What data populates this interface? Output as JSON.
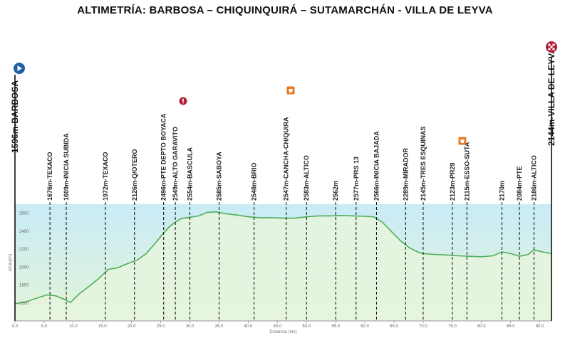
{
  "title": "ALTIMETRÍA: BARBOSA – CHIQUINQUIRÁ – SUTAMARCHÁN - VILLA DE LEYVA",
  "chart_data": {
    "type": "area",
    "xlabel": "Distancia (km)",
    "ylabel": "Altura(m)",
    "xlim": [
      0,
      92
    ],
    "ylim": [
      1400,
      2700
    ],
    "x_ticks": [
      0,
      5,
      10,
      15,
      20,
      25,
      30,
      35,
      40,
      45,
      50,
      55,
      60,
      65,
      70,
      75,
      80,
      85,
      90
    ],
    "x_tick_labels": [
      "0.0",
      "5.0",
      "10.0",
      "15.0",
      "20.0",
      "25.0",
      "30.0",
      "35.0",
      "40.0",
      "45.0",
      "50.0",
      "55.0",
      "60.0",
      "65.0",
      "70.0",
      "75.0",
      "80.0",
      "85.0",
      "90.0"
    ],
    "y_ticks": [
      1600,
      1800,
      2000,
      2200,
      2400,
      2600
    ],
    "y_tick_labels": [
      "1600",
      "1800",
      "2000",
      "2200",
      "2400",
      "2600"
    ],
    "grid": false,
    "colors": {
      "line": "#4fae5a",
      "fill_top": "#c9ebf7",
      "fill_bottom": "#e3f5d8",
      "marker_line": "#000000"
    },
    "profile": {
      "x": [
        0,
        2,
        4,
        5.5,
        7,
        8.5,
        9.5,
        11,
        13,
        14.5,
        16,
        17.5,
        19,
        21,
        22.5,
        24,
        25.5,
        26.5,
        27.5,
        28.5,
        30,
        31.5,
        33,
        34.5,
        36,
        38,
        40,
        42,
        44,
        46,
        48,
        50,
        52,
        54,
        56,
        58,
        60,
        61.5,
        63,
        64.5,
        66,
        67.5,
        69,
        70,
        72,
        74,
        76,
        78,
        80,
        82,
        83.5,
        85,
        86.5,
        88,
        89,
        90,
        92
      ],
      "y": [
        1590,
        1615,
        1660,
        1690,
        1680,
        1640,
        1605,
        1700,
        1800,
        1880,
        1975,
        1990,
        2030,
        2080,
        2150,
        2260,
        2380,
        2450,
        2500,
        2540,
        2555,
        2570,
        2610,
        2615,
        2595,
        2580,
        2560,
        2550,
        2550,
        2545,
        2545,
        2560,
        2570,
        2570,
        2575,
        2570,
        2565,
        2560,
        2500,
        2400,
        2300,
        2220,
        2170,
        2150,
        2140,
        2135,
        2125,
        2120,
        2115,
        2125,
        2170,
        2150,
        2120,
        2140,
        2190,
        2175,
        2150
      ]
    },
    "start_label": "1596m-BARBOSA",
    "end_label": "2144m-VILLA DE LEYVA",
    "checkpoints": [
      {
        "km": 6.0,
        "label": "1676m-TEXACO"
      },
      {
        "km": 8.8,
        "label": "1609m-INICIA SUBIDA"
      },
      {
        "km": 15.5,
        "label": "1972m-TEXACO"
      },
      {
        "km": 20.5,
        "label": "2126m-Q/OTERO"
      },
      {
        "km": 25.5,
        "label": "2496m-PTE DEPTO BOYACA"
      },
      {
        "km": 27.5,
        "label": "2549m-ALTO GARAVITO"
      },
      {
        "km": 30.0,
        "label": "2554m-BASCULA"
      },
      {
        "km": 35.0,
        "label": "2585m-SABOYA"
      },
      {
        "km": 41.0,
        "label": "2548m-BRIO"
      },
      {
        "km": 46.5,
        "label": "2547m-CANCHA-CH/QUIRA"
      },
      {
        "km": 50.0,
        "label": "2583m-ALTICO"
      },
      {
        "km": 55.0,
        "label": "2562m"
      },
      {
        "km": 58.5,
        "label": "2577m-PRS 13"
      },
      {
        "km": 62.0,
        "label": "2566m-INICIA BAJADA"
      },
      {
        "km": 67.0,
        "label": "2289m-MIRADOR"
      },
      {
        "km": 70.0,
        "label": "2145m-TRES ESQUINAS"
      },
      {
        "km": 75.0,
        "label": "2123m-PR29"
      },
      {
        "km": 77.5,
        "label": "2115m-ESSO-SUTA"
      },
      {
        "km": 83.5,
        "label": "2170m"
      },
      {
        "km": 86.5,
        "label": "2084m-PTE"
      },
      {
        "km": 89.0,
        "label": "2186m-ALTICO"
      }
    ],
    "icons": [
      {
        "name": "start-play-icon",
        "color": "#1f5fa8"
      },
      {
        "name": "finish-checkered-icon",
        "color": "#b0203a"
      },
      {
        "name": "climb-warning-icon",
        "color": "#b0203a"
      },
      {
        "name": "feed-zone-icon",
        "color": "#e8771e"
      },
      {
        "name": "feed-zone-icon",
        "color": "#e8771e"
      }
    ]
  }
}
